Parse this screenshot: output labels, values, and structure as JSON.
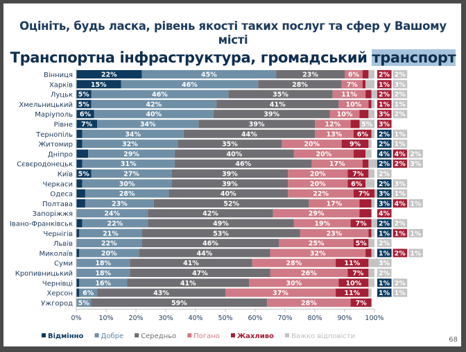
{
  "slide": {
    "question": "Оцініть, будь ласка, рівень якості таких послуг та сфер у Вашому місті",
    "subtitle_main": "Транспортна інфраструктура, громадський ",
    "subtitle_highlight": "транспорт",
    "page_number": "68"
  },
  "chart_data": {
    "type": "bar",
    "orientation": "horizontal-stacked-100",
    "title": "Транспортна інфраструктура, громадський транспорт",
    "xlabel": "",
    "ylabel": "",
    "xlim": [
      0,
      100
    ],
    "x_ticks": [
      "0%",
      "10%",
      "20%",
      "30%",
      "40%",
      "50%",
      "60%",
      "70%",
      "80%",
      "90%",
      "100%"
    ],
    "grid": false,
    "legend_position": "bottom",
    "categories": [
      "Вінниця",
      "Харків",
      "Луцьк",
      "Хмельницький",
      "Маріуполь",
      "Рівне",
      "Тернопіль",
      "Житомир",
      "Дніпро",
      "Сєвєродонецьк",
      "Київ",
      "Черкаси",
      "Одеса",
      "Полтава",
      "Запоріжжя",
      "Івано-Франківськ",
      "Чернігів",
      "Львів",
      "Миколаїв",
      "Суми",
      "Кропивницький",
      "Чернівці",
      "Херсон",
      "Ужгород"
    ],
    "series": [
      {
        "name": "Відмінно",
        "color": "#0d3a5e",
        "label_color": "#0d3a5e",
        "values": [
          22,
          15,
          5,
          5,
          6,
          7,
          2,
          2,
          4,
          2,
          5,
          2,
          3,
          3,
          0,
          2,
          1,
          0,
          1,
          0,
          0,
          1,
          1,
          0
        ]
      },
      {
        "name": "Добре",
        "color": "#6f8fa6",
        "label_color": "#5f86a3",
        "values": [
          45,
          46,
          46,
          42,
          40,
          34,
          34,
          32,
          29,
          31,
          27,
          30,
          28,
          23,
          24,
          22,
          21,
          22,
          20,
          18,
          18,
          16,
          6,
          5
        ]
      },
      {
        "name": "Середньо",
        "color": "#6f6f73",
        "label_color": "#6f6f73",
        "values": [
          23,
          28,
          35,
          41,
          39,
          39,
          44,
          35,
          40,
          46,
          39,
          39,
          40,
          52,
          42,
          49,
          53,
          46,
          44,
          41,
          47,
          41,
          43,
          59
        ]
      },
      {
        "name": "Погано",
        "color": "#cf7a86",
        "label_color": "#d07a86",
        "values": [
          6,
          7,
          11,
          10,
          10,
          12,
          13,
          20,
          20,
          17,
          20,
          20,
          22,
          17,
          29,
          19,
          23,
          25,
          32,
          28,
          26,
          30,
          37,
          28
        ]
      },
      {
        "name": "Жахливо",
        "color": "#a51f36",
        "label_color": "#a51f36",
        "values": [
          2,
          1,
          2,
          1,
          3,
          3,
          6,
          9,
          4,
          2,
          7,
          6,
          7,
          4,
          4,
          7,
          1,
          5,
          2,
          11,
          7,
          10,
          11,
          7
        ]
      },
      {
        "name": "Важко відповісти",
        "color": "#c3c3c3",
        "label_color": "#bfbfbf",
        "values": [
          2,
          3,
          2,
          1,
          2,
          5,
          1,
          1,
          2,
          3,
          2,
          3,
          1,
          1,
          0,
          2,
          1,
          2,
          1,
          3,
          2,
          2,
          1,
          0
        ]
      }
    ]
  }
}
